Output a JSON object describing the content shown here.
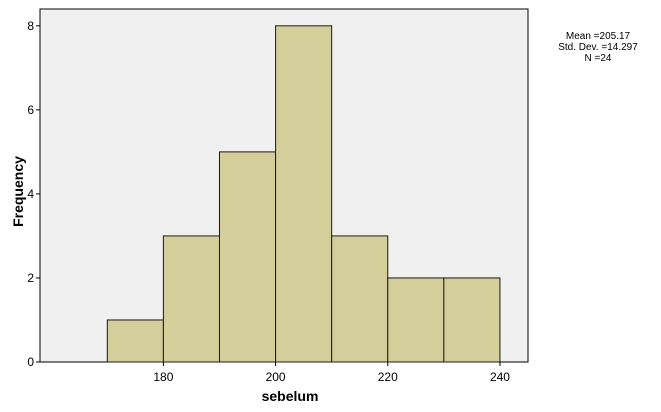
{
  "chart_data": {
    "type": "bar",
    "subtype": "histogram",
    "title": "",
    "xlabel": "sebelum",
    "ylabel": "Frequency",
    "bins": [
      {
        "start": 170,
        "end": 180,
        "count": 1
      },
      {
        "start": 180,
        "end": 190,
        "count": 3
      },
      {
        "start": 190,
        "end": 200,
        "count": 5
      },
      {
        "start": 200,
        "end": 210,
        "count": 8
      },
      {
        "start": 210,
        "end": 220,
        "count": 3
      },
      {
        "start": 220,
        "end": 230,
        "count": 2
      },
      {
        "start": 230,
        "end": 240,
        "count": 2
      }
    ],
    "xticks": [
      "180",
      "200",
      "220",
      "240"
    ],
    "xtick_values": [
      180,
      200,
      220,
      240
    ],
    "yticks": [
      "0",
      "2",
      "4",
      "6",
      "8"
    ],
    "ytick_values": [
      0,
      2,
      4,
      6,
      8
    ],
    "xlim": [
      158,
      245
    ],
    "ylim": [
      0,
      8.4
    ],
    "grid": false,
    "legend": "none",
    "bar_color": "#d4cf9a",
    "bar_edge_color": "#1a1a1a",
    "plot_background": "#f0f0f0",
    "stats": {
      "mean": "Mean =205.17",
      "std_dev": "Std. Dev. =14.297",
      "n": "N =24"
    }
  }
}
